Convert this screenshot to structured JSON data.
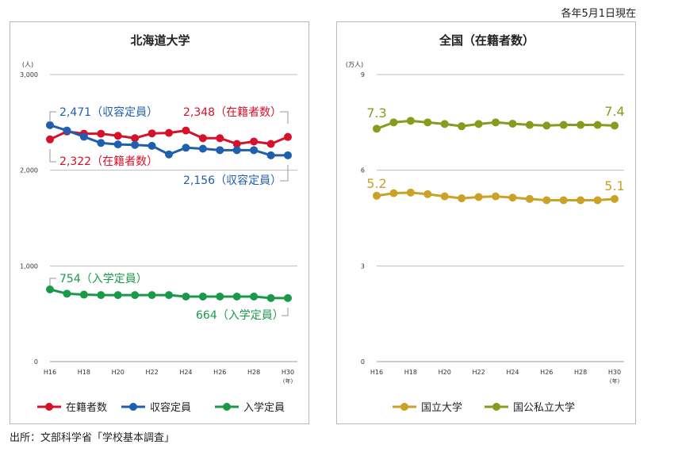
{
  "note": "各年5月1日現在",
  "source": "出所：文部科学省「学校基本調査」",
  "colors": {
    "enrolled": "#d6112b",
    "capacity": "#1f5fae",
    "admission": "#1a9a48",
    "national": "#c9a227",
    "all": "#8a9a1e",
    "grid": "#bdbdbd",
    "leader": "#9a9a9a"
  },
  "chart_data": [
    {
      "type": "line",
      "title": "北海道大学",
      "unit_label": "(人)",
      "year_label": "(年)",
      "ylim": [
        0,
        3000
      ],
      "yticks": [
        {
          "value": 0,
          "label": "0"
        },
        {
          "value": 1000,
          "label": "1,000"
        },
        {
          "value": 2000,
          "label": "2,000"
        },
        {
          "value": 3000,
          "label": "3,000"
        }
      ],
      "x": [
        "H16",
        "H17",
        "H18",
        "H19",
        "H20",
        "H21",
        "H22",
        "H23",
        "H24",
        "H25",
        "H26",
        "H27",
        "H28",
        "H29",
        "H30"
      ],
      "xtick_labels": [
        "H16",
        "",
        "H18",
        "",
        "H20",
        "",
        "H22",
        "",
        "H24",
        "",
        "H26",
        "",
        "H28",
        "",
        "H30"
      ],
      "legend_position": "bottom",
      "series": [
        {
          "name": "在籍者数",
          "color_key": "enrolled",
          "values": [
            2322,
            2405,
            2382,
            2382,
            2360,
            2335,
            2385,
            2390,
            2415,
            2335,
            2335,
            2275,
            2300,
            2275,
            2348
          ]
        },
        {
          "name": "収容定員",
          "color_key": "capacity",
          "values": [
            2471,
            2415,
            2350,
            2285,
            2270,
            2265,
            2255,
            2165,
            2235,
            2225,
            2210,
            2210,
            2210,
            2156,
            2156
          ]
        },
        {
          "name": "入学定員",
          "color_key": "admission",
          "values": [
            754,
            710,
            700,
            695,
            695,
            695,
            695,
            695,
            680,
            680,
            680,
            680,
            680,
            664,
            664
          ]
        }
      ],
      "annotations": [
        {
          "text": "2,471（収容定員）",
          "color_key": "capacity"
        },
        {
          "text": "2,348（在籍者数）",
          "color_key": "enrolled"
        },
        {
          "text": "2,322（在籍者数）",
          "color_key": "enrolled"
        },
        {
          "text": "2,156（収容定員）",
          "color_key": "capacity"
        },
        {
          "text": "754（入学定員）",
          "color_key": "admission"
        },
        {
          "text": "664（入学定員）",
          "color_key": "admission"
        }
      ]
    },
    {
      "type": "line",
      "title": "全国（在籍者数）",
      "unit_label": "(万人)",
      "year_label": "(年)",
      "ylim": [
        0,
        9
      ],
      "yticks": [
        {
          "value": 0,
          "label": "0"
        },
        {
          "value": 3,
          "label": "3"
        },
        {
          "value": 6,
          "label": "6"
        },
        {
          "value": 9,
          "label": "9"
        }
      ],
      "x": [
        "H16",
        "H17",
        "H18",
        "H19",
        "H20",
        "H21",
        "H22",
        "H23",
        "H24",
        "H25",
        "H26",
        "H27",
        "H28",
        "H29",
        "H30"
      ],
      "xtick_labels": [
        "H16",
        "",
        "H18",
        "",
        "H20",
        "",
        "H22",
        "",
        "H24",
        "",
        "H26",
        "",
        "H28",
        "",
        "H30"
      ],
      "legend_position": "bottom",
      "series": [
        {
          "name": "国立大学",
          "color_key": "national",
          "values": [
            5.2,
            5.28,
            5.3,
            5.25,
            5.18,
            5.12,
            5.16,
            5.18,
            5.14,
            5.1,
            5.06,
            5.06,
            5.06,
            5.06,
            5.1
          ]
        },
        {
          "name": "国公私立大学",
          "color_key": "all",
          "values": [
            7.3,
            7.5,
            7.55,
            7.5,
            7.45,
            7.38,
            7.45,
            7.5,
            7.46,
            7.42,
            7.4,
            7.42,
            7.42,
            7.42,
            7.4
          ]
        }
      ],
      "annotations": [
        {
          "text": "7.3",
          "color_key": "all"
        },
        {
          "text": "7.4",
          "color_key": "all"
        },
        {
          "text": "5.2",
          "color_key": "national"
        },
        {
          "text": "5.1",
          "color_key": "national"
        }
      ]
    }
  ]
}
